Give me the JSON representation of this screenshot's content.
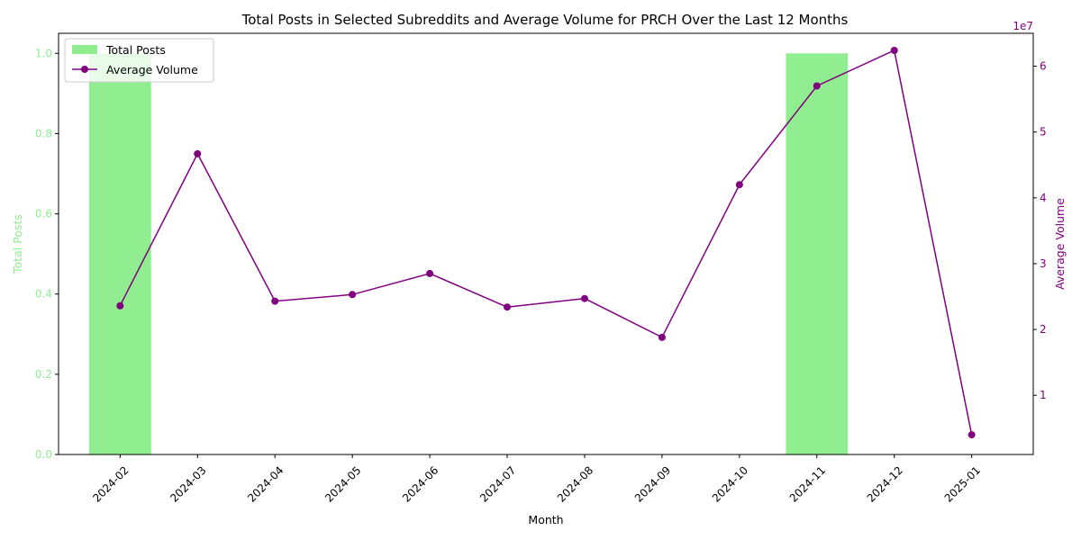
{
  "chart_data": {
    "type": "bar+line",
    "title": "Total Posts in Selected Subreddits and Average Volume for PRCH Over the Last 12 Months",
    "xlabel": "Month",
    "categories": [
      "2024-02",
      "2024-03",
      "2024-04",
      "2024-05",
      "2024-06",
      "2024-07",
      "2024-08",
      "2024-09",
      "2024-10",
      "2024-11",
      "2024-12",
      "2025-01"
    ],
    "left_axis": {
      "label": "Total Posts",
      "ylim": [
        0,
        1.05
      ],
      "ticks": [
        0.0,
        0.2,
        0.4,
        0.6,
        0.8,
        1.0
      ],
      "tick_labels": [
        "0.0",
        "0.2",
        "0.4",
        "0.6",
        "0.8",
        "1.0"
      ],
      "color": "#90ee90"
    },
    "right_axis": {
      "label": "Average Volume",
      "ylim": [
        0.1,
        6.5
      ],
      "ticks": [
        1,
        2,
        3,
        4,
        5,
        6
      ],
      "tick_labels": [
        "1",
        "2",
        "3",
        "4",
        "5",
        "6"
      ],
      "offset_text": "1e7",
      "color": "#800080"
    },
    "series": [
      {
        "name": "Total Posts",
        "type": "bar",
        "axis": "left",
        "color": "#90ee90",
        "values": [
          1,
          0,
          0,
          0,
          0,
          0,
          0,
          0,
          0,
          1,
          0,
          0
        ]
      },
      {
        "name": "Average Volume",
        "type": "line",
        "axis": "right",
        "color": "#800080",
        "marker": "circle",
        "values": [
          23600000,
          46700000,
          24300000,
          25300000,
          28500000,
          23400000,
          24700000,
          18800000,
          42000000,
          57000000,
          62400000,
          4000000
        ]
      }
    ],
    "legend": {
      "position": "top-left"
    },
    "grid": false
  }
}
